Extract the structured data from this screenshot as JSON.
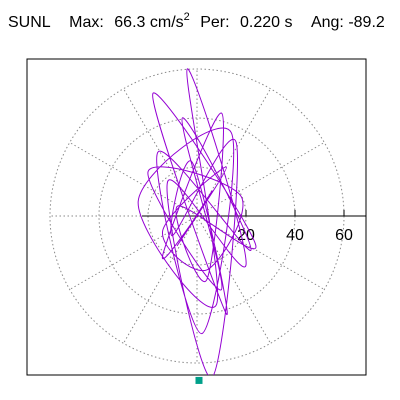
{
  "header": {
    "station": "SUNL",
    "max_label": "Max:",
    "max_value": "66.3",
    "max_unit": "cm/s",
    "max_unit_sup": "2",
    "per_label": "Per:",
    "per_value": "0.220 s",
    "ang_label": "Ang:",
    "ang_value": "-89.2"
  },
  "chart_data": {
    "type": "line",
    "title": "",
    "xlabel": "",
    "ylabel": "",
    "rlim": [
      0,
      70
    ],
    "radial_ticks": [
      20,
      40,
      60
    ],
    "tick_labels": [
      "20",
      "40",
      "60"
    ],
    "grid": true,
    "grid_rings": [
      20,
      40,
      60
    ],
    "grid_spokes_deg": [
      0,
      30,
      60,
      90,
      120,
      150,
      180,
      210,
      240,
      270,
      300,
      330
    ],
    "series": [
      {
        "color": "#9400d3",
        "x": [
          0,
          6,
          -8,
          12,
          -14,
          4,
          18,
          -20,
          10,
          -6,
          22,
          -16,
          2,
          14,
          -24,
          8,
          -4,
          20,
          -12,
          6,
          16,
          -10,
          -2,
          12,
          -18,
          24,
          -8,
          4,
          10,
          -14,
          0
        ],
        "y": [
          0,
          10,
          -12,
          20,
          -6,
          -22,
          8,
          18,
          -30,
          40,
          -14,
          26,
          -48,
          34,
          6,
          -36,
          60,
          -20,
          14,
          -66,
          30,
          -8,
          22,
          -40,
          50,
          -12,
          4,
          -26,
          42,
          -16,
          0
        ]
      }
    ],
    "marker": {
      "x": 0,
      "y": -66.3,
      "color": "#00a08a"
    },
    "max_value": 66.3,
    "max_unit": "cm/s2"
  }
}
